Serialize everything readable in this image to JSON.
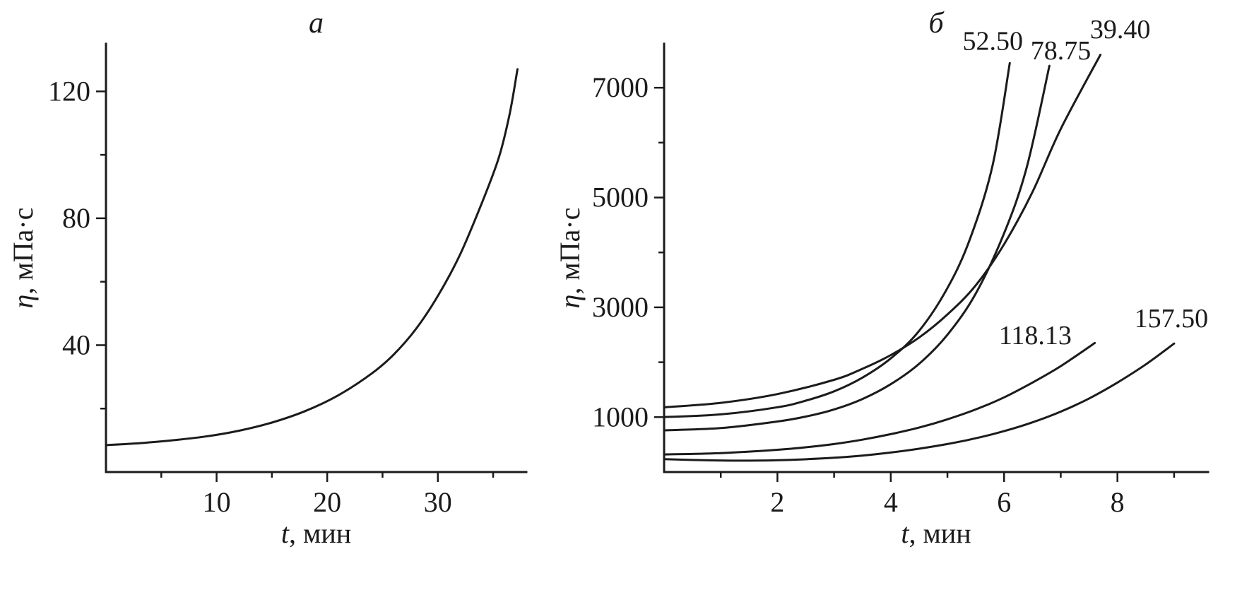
{
  "figure": {
    "background": "#ffffff",
    "ink_color": "#1b1b1b"
  },
  "chart_data": [
    {
      "id": "a",
      "type": "line",
      "title": "а",
      "xlabel": "t, мин",
      "ylabel": "η, мПа·с",
      "xlim": [
        0,
        38
      ],
      "ylim": [
        0,
        135
      ],
      "xticks": [
        10,
        20,
        30
      ],
      "xticks_minor": [
        5,
        15,
        25,
        35
      ],
      "yticks": [
        40,
        80,
        120
      ],
      "yticks_minor": [
        20,
        60,
        100
      ],
      "grid": false,
      "frame": "left-bottom",
      "series": [
        {
          "name": "viscosity-vs-time",
          "label": null,
          "points": [
            [
              0,
              8.5
            ],
            [
              3,
              9.1
            ],
            [
              6,
              10.0
            ],
            [
              9,
              11.2
            ],
            [
              12,
              13.0
            ],
            [
              15,
              15.6
            ],
            [
              18,
              19.2
            ],
            [
              21,
              24.2
            ],
            [
              24,
              31.0
            ],
            [
              26,
              37.0
            ],
            [
              28,
              45.0
            ],
            [
              30,
              55.5
            ],
            [
              32,
              68.5
            ],
            [
              34,
              85.0
            ],
            [
              35.5,
              99.0
            ],
            [
              36.5,
              113.0
            ],
            [
              37.2,
              127.0
            ]
          ]
        }
      ]
    },
    {
      "id": "b",
      "type": "line",
      "title": "б",
      "xlabel": "t, мин",
      "ylabel": "η, мПа·с",
      "xlim": [
        0,
        9.6
      ],
      "ylim": [
        0,
        7800
      ],
      "xticks": [
        2,
        4,
        6,
        8
      ],
      "xticks_minor": [
        1,
        3,
        5,
        7,
        9
      ],
      "yticks": [
        1000,
        3000,
        5000,
        7000
      ],
      "yticks_minor": [
        2000,
        4000,
        6000
      ],
      "grid": false,
      "frame": "left-bottom",
      "series": [
        {
          "name": "shear-rate-39.40",
          "label": "39.40",
          "label_at": [
            8.05,
            7900
          ],
          "points": [
            [
              0,
              1180
            ],
            [
              1,
              1260
            ],
            [
              2,
              1420
            ],
            [
              3,
              1680
            ],
            [
              3.5,
              1880
            ],
            [
              4,
              2130
            ],
            [
              4.5,
              2450
            ],
            [
              5,
              2870
            ],
            [
              5.5,
              3400
            ],
            [
              6,
              4150
            ],
            [
              6.5,
              5100
            ],
            [
              7,
              6250
            ],
            [
              7.7,
              7600
            ]
          ]
        },
        {
          "name": "shear-rate-52.50",
          "label": "52.50",
          "label_at": [
            5.8,
            7690
          ],
          "points": [
            [
              0,
              1000
            ],
            [
              1,
              1050
            ],
            [
              2,
              1180
            ],
            [
              2.5,
              1300
            ],
            [
              3,
              1470
            ],
            [
              3.5,
              1720
            ],
            [
              4,
              2070
            ],
            [
              4.5,
              2570
            ],
            [
              5,
              3350
            ],
            [
              5.4,
              4250
            ],
            [
              5.8,
              5600
            ],
            [
              6.1,
              7450
            ]
          ]
        },
        {
          "name": "shear-rate-78.75",
          "label": "78.75",
          "label_at": [
            7.0,
            7520
          ],
          "points": [
            [
              0,
              760
            ],
            [
              1,
              800
            ],
            [
              2,
              920
            ],
            [
              2.5,
              1010
            ],
            [
              3,
              1140
            ],
            [
              3.5,
              1330
            ],
            [
              4,
              1600
            ],
            [
              4.5,
              1970
            ],
            [
              5,
              2500
            ],
            [
              5.5,
              3250
            ],
            [
              6,
              4350
            ],
            [
              6.4,
              5550
            ],
            [
              6.8,
              7400
            ]
          ]
        },
        {
          "name": "shear-rate-118.13",
          "label": "118.13",
          "label_at": [
            6.55,
            2330
          ],
          "points": [
            [
              0,
              320
            ],
            [
              1,
              345
            ],
            [
              2,
              405
            ],
            [
              2.5,
              450
            ],
            [
              3,
              510
            ],
            [
              3.5,
              590
            ],
            [
              4,
              690
            ],
            [
              4.5,
              810
            ],
            [
              5,
              960
            ],
            [
              5.5,
              1140
            ],
            [
              6,
              1360
            ],
            [
              6.5,
              1630
            ],
            [
              7,
              1930
            ],
            [
              7.6,
              2350
            ]
          ]
        },
        {
          "name": "shear-rate-157.50",
          "label": "157.50",
          "label_at": [
            8.95,
            2640
          ],
          "points": [
            [
              0,
              235
            ],
            [
              0.7,
              215
            ],
            [
              1.5,
              207
            ],
            [
              2.2,
              220
            ],
            [
              3,
              260
            ],
            [
              3.5,
              300
            ],
            [
              4,
              355
            ],
            [
              4.5,
              425
            ],
            [
              5,
              510
            ],
            [
              5.5,
              615
            ],
            [
              6,
              745
            ],
            [
              6.5,
              905
            ],
            [
              7,
              1100
            ],
            [
              7.5,
              1340
            ],
            [
              8,
              1630
            ],
            [
              8.5,
              1960
            ],
            [
              9,
              2340
            ]
          ]
        }
      ]
    }
  ]
}
